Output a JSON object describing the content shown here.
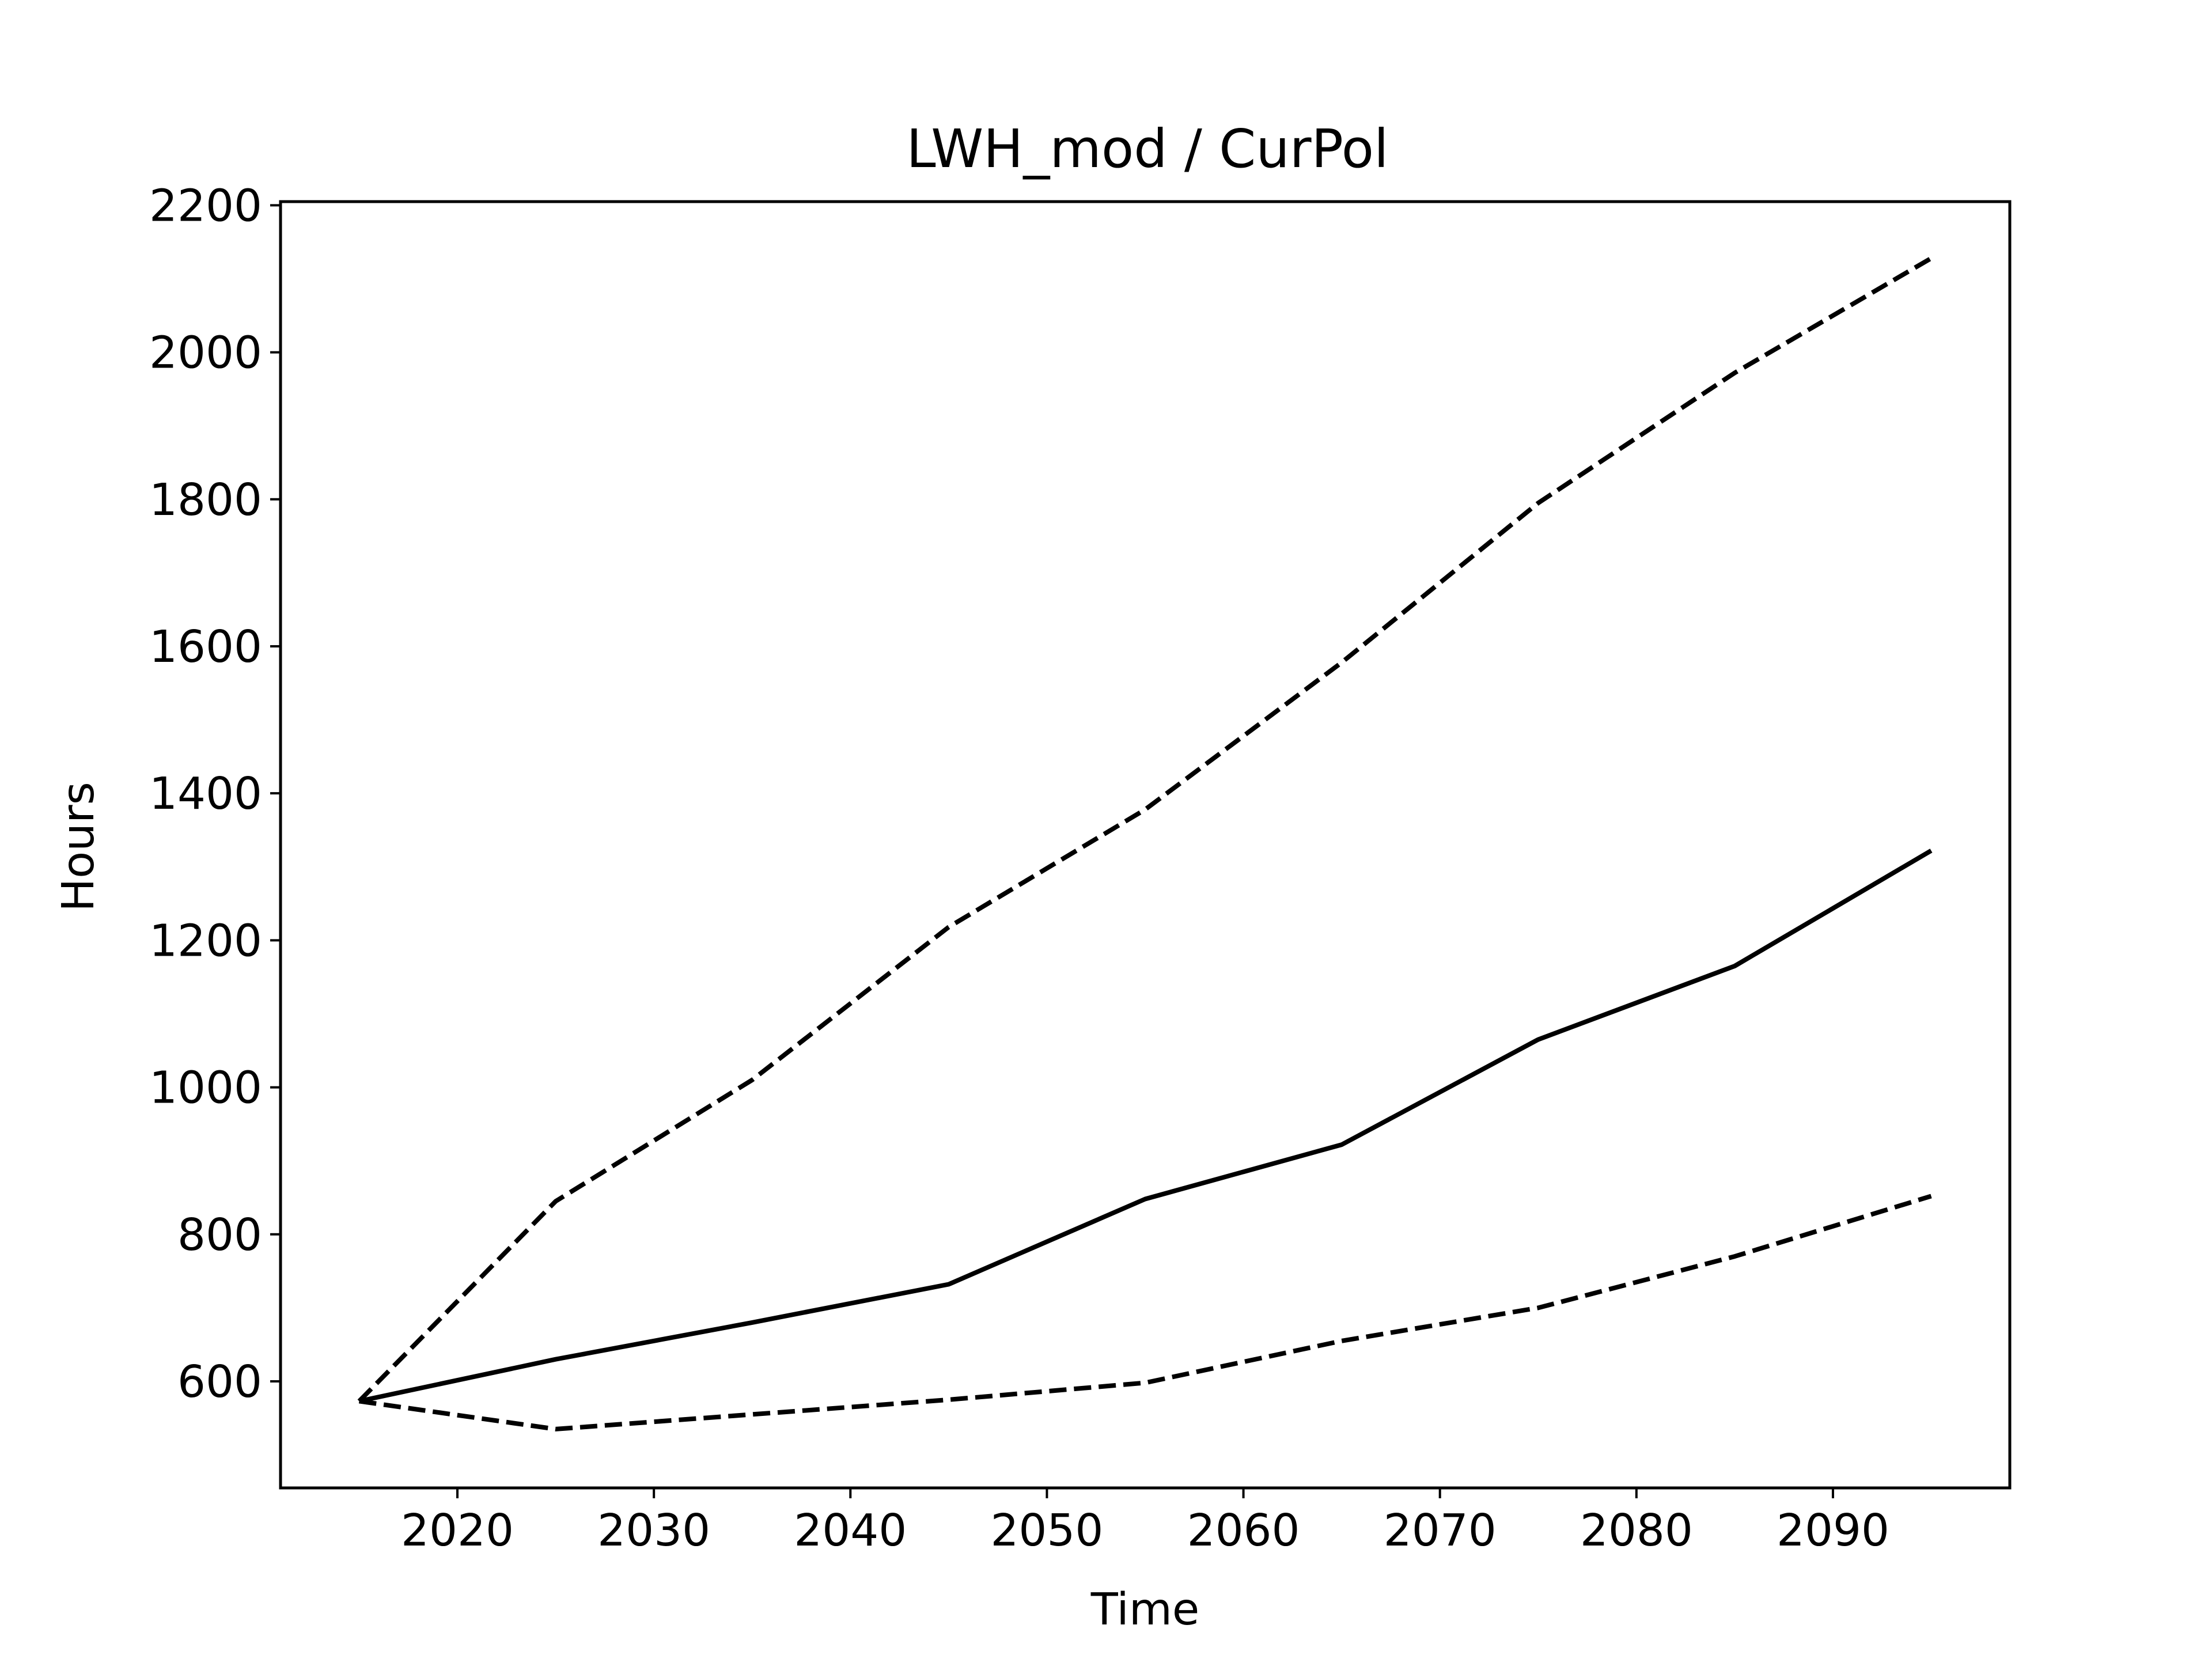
{
  "chart_data": {
    "type": "line",
    "title": "LWH_mod / CurPol",
    "xlabel": "Time",
    "ylabel": "Hours",
    "xlim": [
      2011,
      2099
    ],
    "ylim": [
      455,
      2205
    ],
    "xticks": [
      2020,
      2030,
      2040,
      2050,
      2060,
      2070,
      2080,
      2090
    ],
    "yticks": [
      600,
      800,
      1000,
      1200,
      1400,
      1600,
      1800,
      2000,
      2200
    ],
    "grid": false,
    "legend": "none",
    "x": [
      2015,
      2025,
      2035,
      2045,
      2055,
      2065,
      2075,
      2085,
      2095
    ],
    "series": [
      {
        "style": "solid",
        "color": "#000000",
        "values": [
          573,
          630,
          680,
          732,
          848,
          922,
          1065,
          1165,
          1322
        ]
      },
      {
        "style": "dashed",
        "color": "#000000",
        "values": [
          573,
          845,
          1010,
          1218,
          1378,
          1578,
          1795,
          1972,
          2128
        ]
      },
      {
        "style": "dashed",
        "color": "#000000",
        "values": [
          573,
          535,
          555,
          575,
          598,
          655,
          700,
          770,
          852
        ]
      }
    ]
  }
}
